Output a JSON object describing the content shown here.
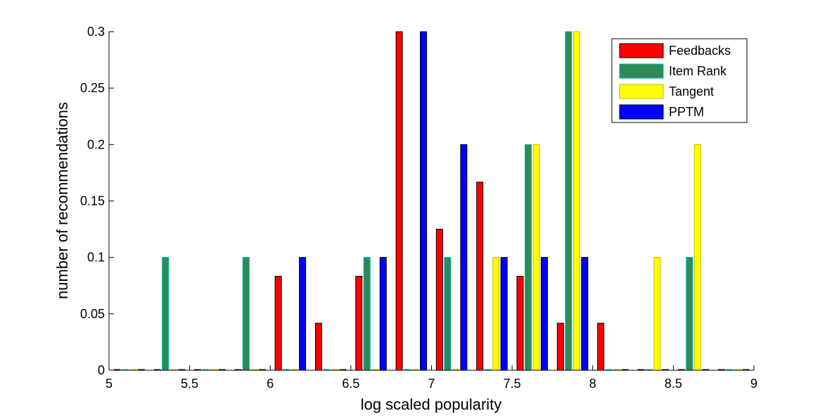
{
  "chart_data": {
    "type": "bar",
    "title": "",
    "xlabel": "log scaled popularity",
    "ylabel": "number of recommendations",
    "xlim": [
      5,
      9
    ],
    "ylim": [
      0,
      0.3
    ],
    "xticks": [
      "5",
      "5.5",
      "6",
      "6.5",
      "7",
      "7.5",
      "8",
      "8.5",
      "9"
    ],
    "yticks": [
      "0",
      "0.05",
      "0.1",
      "0.15",
      "0.2",
      "0.25",
      "0.3"
    ],
    "bin_centers": [
      5.125,
      5.375,
      5.625,
      5.875,
      6.125,
      6.375,
      6.625,
      6.875,
      7.125,
      7.375,
      7.625,
      7.875,
      8.125,
      8.375,
      8.625,
      8.875
    ],
    "grid": false,
    "legend_position": "top-right",
    "series": [
      {
        "name": "Feedbacks",
        "color": "#ff0000",
        "edge": "#000000",
        "values": [
          0,
          0,
          0,
          0,
          0.0833,
          0.0417,
          0.0833,
          0.3,
          0.125,
          0.1667,
          0.0833,
          0.0417,
          0.0417,
          0,
          0,
          0
        ]
      },
      {
        "name": "Item Rank",
        "color": "#2e8b57",
        "edge": "#00b0b0",
        "values": [
          0,
          0.1,
          0,
          0.1,
          0,
          0,
          0.1,
          0,
          0.1,
          0,
          0.2,
          0.3,
          0,
          0,
          0.1,
          0
        ]
      },
      {
        "name": "Tangent",
        "color": "#ffff00",
        "edge": "#c8b400",
        "values": [
          0,
          0,
          0,
          0,
          0,
          0,
          0,
          0,
          0,
          0.1,
          0.2,
          0.3,
          0,
          0.1,
          0.2,
          0
        ]
      },
      {
        "name": "PPTM",
        "color": "#0000ff",
        "edge": "#000000",
        "values": [
          0,
          0,
          0,
          0,
          0.1,
          0,
          0.1,
          0.3,
          0.2,
          0.1,
          0.1,
          0.1,
          0,
          0,
          0,
          0
        ]
      }
    ]
  }
}
